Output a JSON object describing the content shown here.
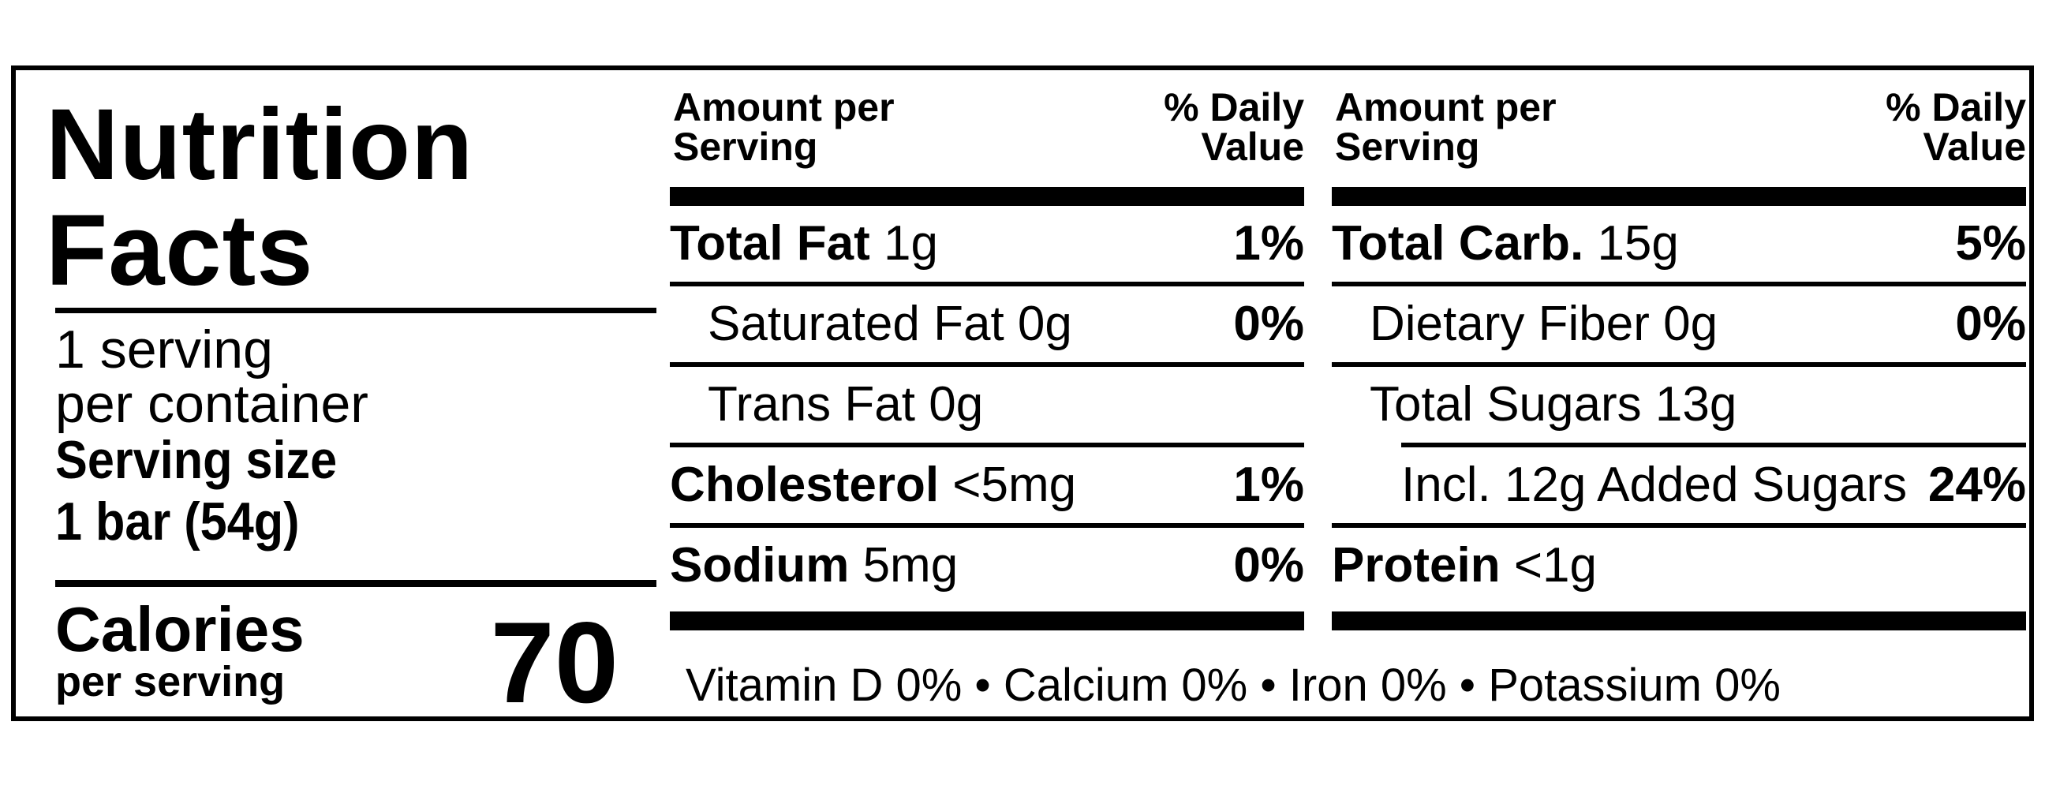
{
  "title_line1": "Nutrition",
  "title_line2": "Facts",
  "servings": {
    "line1": "1 serving",
    "line2": "per container",
    "size_label": "Serving size",
    "size_value": "1 bar (54g)"
  },
  "calories": {
    "label": "Calories",
    "sublabel": "per serving",
    "value": "70"
  },
  "header": {
    "amount_line1": "Amount per",
    "amount_line2": "Serving",
    "dv_line1": "% Daily",
    "dv_line2": "Value"
  },
  "nutrients_left": [
    {
      "name": "Total Fat",
      "amount": "1g",
      "dv": "1%"
    },
    {
      "name": "Saturated Fat 0g",
      "amount": "",
      "dv": "0%"
    },
    {
      "name": "Trans Fat 0g",
      "amount": "",
      "dv": ""
    },
    {
      "name": "Cholesterol",
      "amount": "<5mg",
      "dv": "1%"
    },
    {
      "name": "Sodium",
      "amount": "5mg",
      "dv": "0%"
    }
  ],
  "nutrients_right": [
    {
      "name": "Total Carb.",
      "amount": "15g",
      "dv": "5%"
    },
    {
      "name": "Dietary Fiber 0g",
      "amount": "",
      "dv": "0%"
    },
    {
      "name": "Total Sugars 13g",
      "amount": "",
      "dv": ""
    },
    {
      "name": "Incl. 12g Added Sugars",
      "amount": "",
      "dv": "24%"
    },
    {
      "name": "Protein",
      "amount": "<1g",
      "dv": ""
    }
  ],
  "vitamins": "Vitamin D 0% • Calcium 0% • Iron 0% • Potassium 0%"
}
